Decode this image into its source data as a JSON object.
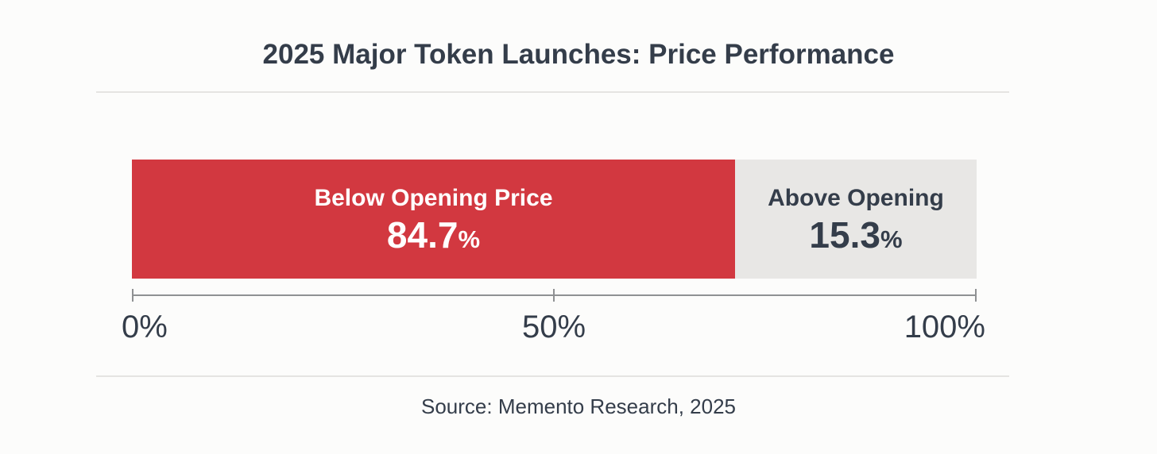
{
  "chart_data": {
    "type": "bar",
    "variant": "horizontal-stacked-single-bar",
    "title": "2025 Major Token Launches: Price Performance",
    "categories": [
      "Below Opening Price",
      "Above Opening"
    ],
    "values": [
      84.7,
      15.3
    ],
    "unit": "%",
    "xlim": [
      0,
      100
    ],
    "tick_labels": [
      "0%",
      "50%",
      "100%"
    ],
    "grid": false,
    "legend": "none",
    "source": "Source: Memento Research, 2025",
    "segments": [
      {
        "label": "Below Opening Price",
        "value": 84.7,
        "value_text": "84.7",
        "unit": "%",
        "fill": "#d23840",
        "text_color": "#ffffff",
        "visual_width": "71.4%"
      },
      {
        "label": "Above Opening",
        "value": 15.3,
        "value_text": "15.3",
        "unit": "%",
        "fill": "#e8e7e5",
        "text_color": "#343d4a",
        "visual_width": "28.6%"
      }
    ],
    "colors": {
      "below_opening": "#d23840",
      "above_opening": "#e8e7e5",
      "text_dark": "#343d4a",
      "axis": "#8f9193",
      "divider": "#e5e4e2",
      "background": "#fcfcfb"
    }
  }
}
